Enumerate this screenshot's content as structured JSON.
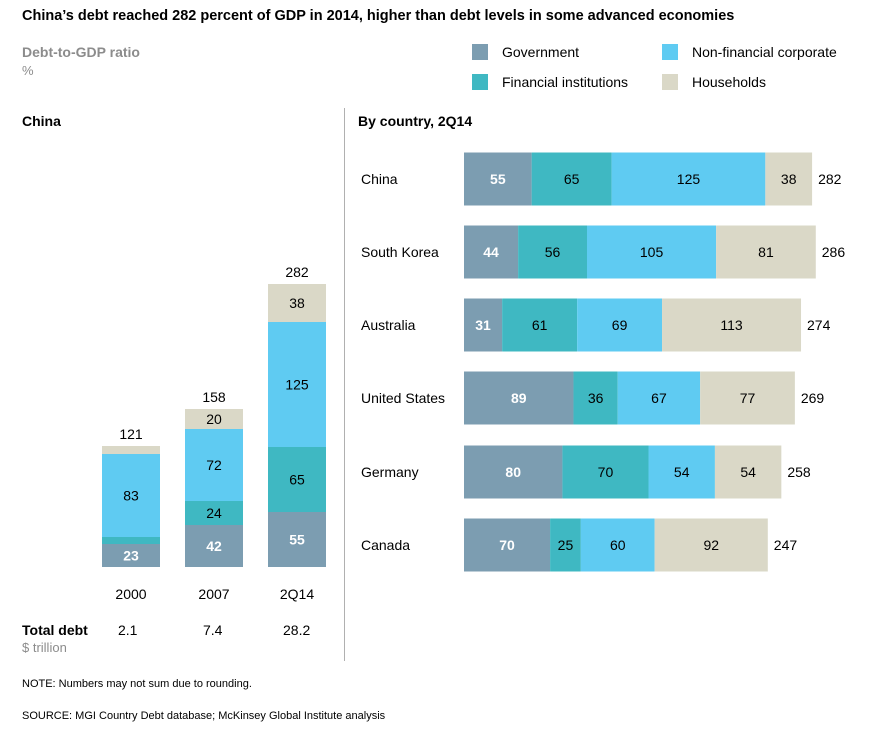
{
  "title": "China’s debt reached 282 percent of GDP in 2014, higher than debt levels in some advanced economies",
  "y_title": "Debt-to-GDP ratio",
  "y_unit": "%",
  "colors": {
    "Government": "#7c9db1",
    "Financial institutions": "#3fb8c2",
    "Non-financial corporate": "#5fcbf2",
    "Households": "#dad8c7"
  },
  "legend": [
    "Government",
    "Non-financial corporate",
    "Financial institutions",
    "Households"
  ],
  "panels": {
    "left_title": "China",
    "right_title": "By country, 2Q14"
  },
  "total_debt": {
    "label": "Total debt",
    "unit": "$ trillion",
    "values": [
      "2.1",
      "7.4",
      "28.2"
    ]
  },
  "note": "NOTE: Numbers may not sum due to rounding.",
  "source": "SOURCE:  MGI Country Debt database; McKinsey Global Institute analysis",
  "chart_data": [
    {
      "type": "bar",
      "orientation": "vertical",
      "stacked": true,
      "title": "China",
      "categories": [
        "2000",
        "2007",
        "2Q14"
      ],
      "series": [
        {
          "name": "Government",
          "values": [
            23,
            42,
            55
          ]
        },
        {
          "name": "Financial institutions",
          "values": [
            7,
            24,
            65
          ]
        },
        {
          "name": "Non-financial corporate",
          "values": [
            83,
            72,
            125
          ]
        },
        {
          "name": "Households",
          "values": [
            8,
            20,
            38
          ]
        }
      ],
      "totals": [
        121,
        158,
        282
      ]
    },
    {
      "type": "bar",
      "orientation": "horizontal",
      "stacked": true,
      "title": "By country, 2Q14",
      "categories": [
        "China",
        "South Korea",
        "Australia",
        "United States",
        "Germany",
        "Canada"
      ],
      "series": [
        {
          "name": "Government",
          "values": [
            55,
            44,
            31,
            89,
            80,
            70
          ]
        },
        {
          "name": "Financial institutions",
          "values": [
            65,
            56,
            61,
            36,
            70,
            25
          ]
        },
        {
          "name": "Non-financial corporate",
          "values": [
            125,
            105,
            69,
            67,
            54,
            60
          ]
        },
        {
          "name": "Households",
          "values": [
            38,
            81,
            113,
            77,
            54,
            92
          ]
        }
      ],
      "totals": [
        282,
        286,
        274,
        269,
        258,
        247
      ]
    }
  ]
}
